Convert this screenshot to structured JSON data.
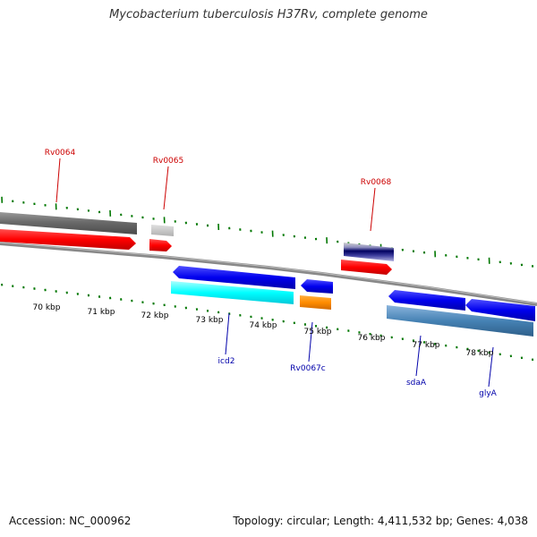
{
  "title": "Mycobacterium tuberculosis H37Rv, complete genome",
  "footer": {
    "accession": "Accession: NC_000962",
    "topology": "Topology: circular; Length: 4,411,532 bp; Genes: 4,038"
  },
  "scale_labels": [
    "70 kbp",
    "71 kbp",
    "72 kbp",
    "73 kbp",
    "74 kbp",
    "75 kbp",
    "76 kbp",
    "77 kbp",
    "78 kbp"
  ],
  "colors": {
    "label_forward": "#cc0000",
    "label_reverse": "#0000aa",
    "tick": "#007700",
    "backbone": "#888888"
  },
  "forward_labels": [
    "Rv0064",
    "Rv0065",
    "Rv0068"
  ],
  "reverse_labels": [
    "icd2",
    "Rv0067c",
    "sdaA",
    "glyA"
  ]
}
